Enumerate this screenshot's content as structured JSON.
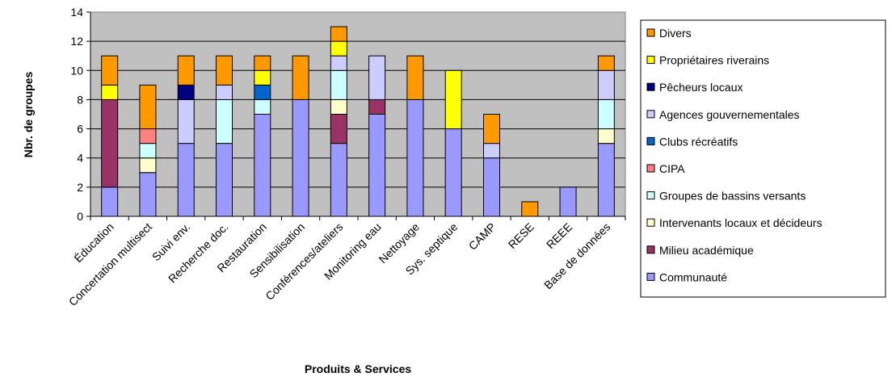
{
  "chart_data": {
    "type": "bar",
    "stacked": true,
    "title": "",
    "xlabel": "Produits & Services",
    "ylabel": "Nbr. de groupes",
    "ylim": [
      0,
      14
    ],
    "yticks": [
      0,
      2,
      4,
      6,
      8,
      10,
      12,
      14
    ],
    "grid": true,
    "legend_position": "right",
    "categories": [
      "Éducation",
      "Concertation multisect",
      "Suivi env.",
      "Recherche doc.",
      "Restauration",
      "Sensibilisation",
      "Conférences/ateliers",
      "Monitoring eau",
      "Nettoyage",
      "Sys. septique",
      "CAMP",
      "RESE",
      "REEE",
      "Base de données"
    ],
    "series": [
      {
        "name": "Communauté",
        "color": "#9999ff",
        "values": [
          2,
          3,
          5,
          5,
          7,
          8,
          5,
          7,
          8,
          6,
          4,
          0,
          2,
          5
        ]
      },
      {
        "name": "Milieu académique",
        "color": "#993366",
        "values": [
          6,
          0,
          0,
          0,
          0,
          0,
          2,
          1,
          0,
          0,
          0,
          0,
          0,
          0
        ]
      },
      {
        "name": "Intervenants locaux et décideurs",
        "color": "#ffffcc",
        "values": [
          0,
          1,
          0,
          0,
          0,
          0,
          1,
          0,
          0,
          0,
          0,
          0,
          0,
          1
        ]
      },
      {
        "name": "Groupes de bassins versants",
        "color": "#ccffff",
        "values": [
          0,
          1,
          0,
          3,
          1,
          0,
          2,
          0,
          0,
          0,
          0,
          0,
          0,
          2
        ]
      },
      {
        "name": "CIPA",
        "color": "#ff8080",
        "values": [
          0,
          1,
          0,
          0,
          0,
          0,
          0,
          0,
          0,
          0,
          0,
          0,
          0,
          0
        ]
      },
      {
        "name": "Clubs récréatifs",
        "color": "#0066cc",
        "values": [
          0,
          0,
          0,
          0,
          1,
          0,
          0,
          0,
          0,
          0,
          0,
          0,
          0,
          0
        ]
      },
      {
        "name": "Agences gouvernementales",
        "color": "#ccccff",
        "values": [
          0,
          0,
          3,
          1,
          0,
          0,
          1,
          3,
          0,
          0,
          1,
          0,
          0,
          2
        ]
      },
      {
        "name": "Pêcheurs locaux",
        "color": "#000080",
        "values": [
          0,
          0,
          1,
          0,
          0,
          0,
          0,
          0,
          0,
          0,
          0,
          0,
          0,
          0
        ]
      },
      {
        "name": "Propriétaires riverains",
        "color": "#ffff00",
        "values": [
          1,
          0,
          0,
          0,
          1,
          0,
          1,
          0,
          0,
          4,
          0,
          0,
          0,
          0
        ]
      },
      {
        "name": "Divers",
        "color": "#ff9900",
        "values": [
          2,
          3,
          2,
          2,
          1,
          3,
          1,
          0,
          3,
          0,
          2,
          1,
          0,
          1
        ]
      }
    ],
    "legend_order": [
      "Divers",
      "Propriétaires riverains",
      "Pêcheurs locaux",
      "Agences gouvernementales",
      "Clubs récréatifs",
      "CIPA",
      "Groupes de bassins versants",
      "Intervenants locaux et décideurs",
      "Milieu académique",
      "Communauté"
    ],
    "plot_background": "#c0c0c0"
  }
}
